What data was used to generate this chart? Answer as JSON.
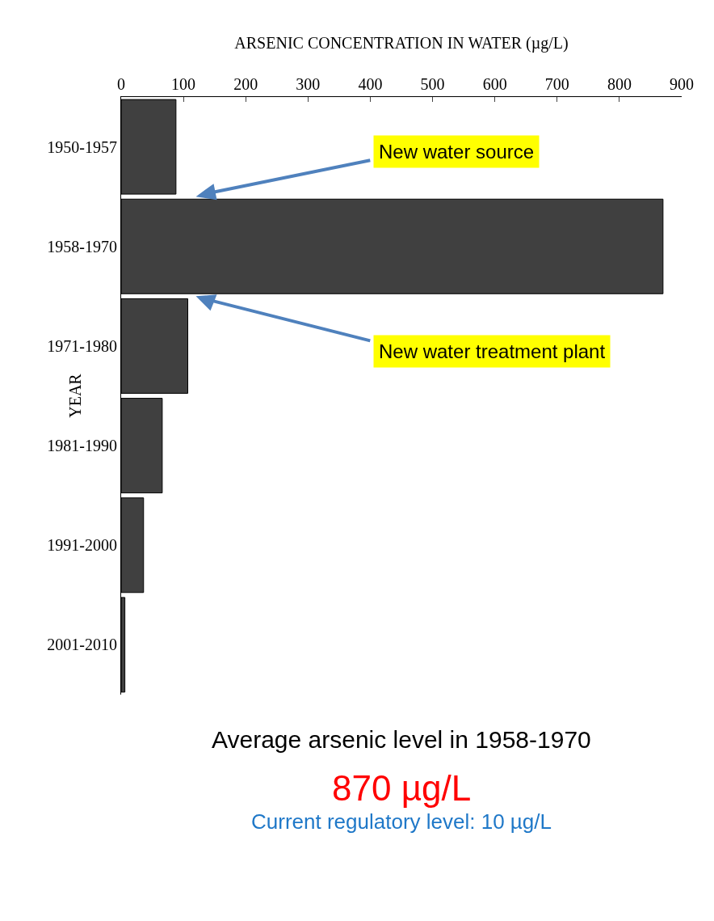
{
  "chart_data": {
    "type": "bar",
    "orientation": "horizontal",
    "xlabel": "ARSENIC CONCENTRATION IN WATER (µg/L)",
    "ylabel": "YEAR",
    "categories": [
      "1950-1957",
      "1958-1970",
      "1971-1980",
      "1981-1990",
      "1991-2000",
      "2001-2010"
    ],
    "values": [
      88,
      870,
      107,
      66,
      36,
      6
    ],
    "color": "#404040",
    "xlim": [
      0,
      900
    ],
    "xticks": [
      0,
      100,
      200,
      300,
      400,
      500,
      600,
      700,
      800,
      900
    ],
    "grid": false,
    "annotations": [
      "New water source",
      "New water treatment plant",
      "Average arsenic level in 1958-1970",
      "870 µg/L",
      "Current regulatory level: 10 µg/L"
    ]
  }
}
